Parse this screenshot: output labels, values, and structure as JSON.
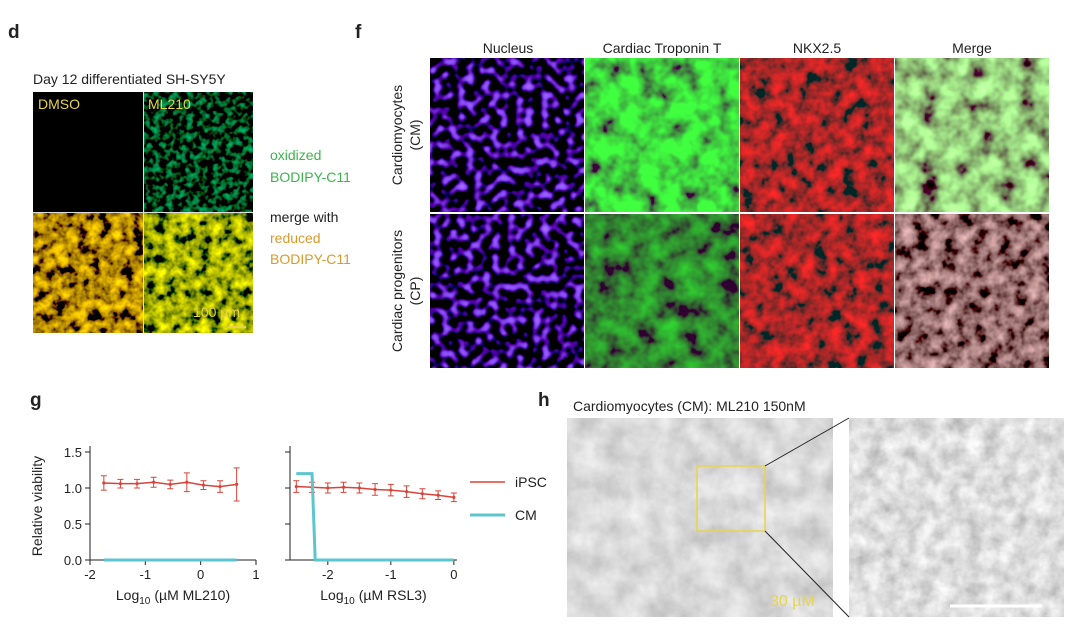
{
  "panels": {
    "d": {
      "label": "d",
      "title": "Day 12 differentiated SH-SY5Y",
      "columns": [
        "DMSO",
        "ML210"
      ],
      "side": [
        "oxidized",
        "BODIPY-C11",
        "merge with",
        "reduced",
        "BODIPY-C11"
      ],
      "scale": "100 µm"
    },
    "f": {
      "label": "f",
      "columns": [
        "Nucleus",
        "Cardiac Troponin T",
        "NKX2.5",
        "Merge"
      ],
      "rows": [
        [
          "Cardiomyocytes",
          "(CM)"
        ],
        [
          "Cardiac progenitors",
          "(CP)"
        ]
      ]
    },
    "g": {
      "label": "g"
    },
    "h": {
      "label": "h",
      "title": "Cardiomyocytes (CM): ML210 150nM",
      "scale": "30 µM"
    }
  },
  "chart_data": [
    {
      "type": "line",
      "ylabel": "Relative viability",
      "xlabel": {
        "text": "Log",
        "sub": "10",
        "rest": "(µM ML210)"
      },
      "xlim": [
        -2,
        1
      ],
      "xticks": [
        -2,
        -1,
        0,
        1
      ],
      "ylim": [
        0,
        1.5
      ],
      "yticks": [
        {
          "value": 0,
          "label": "0.0"
        },
        {
          "value": 0.5,
          "label": "0.5"
        },
        {
          "value": 1,
          "label": "1.0"
        },
        {
          "value": 1.5,
          "label": "1.5"
        }
      ],
      "series": [
        {
          "name": "iPSC",
          "color": "#d9443a",
          "x": [
            -1.75,
            -1.45,
            -1.15,
            -0.85,
            -0.55,
            -0.25,
            0.05,
            0.35,
            0.65
          ],
          "values": [
            1.07,
            1.06,
            1.06,
            1.08,
            1.05,
            1.08,
            1.04,
            1.02,
            1.05
          ],
          "errors": [
            0.1,
            0.06,
            0.06,
            0.07,
            0.06,
            0.13,
            0.06,
            0.08,
            0.23
          ]
        },
        {
          "name": "CM",
          "color": "#5cc6cf",
          "x": [
            -1.75,
            -1.45,
            -1.15,
            -0.85,
            -0.55,
            -0.25,
            0.05,
            0.35,
            0.65
          ],
          "values": [
            0,
            0,
            0,
            0,
            0,
            0,
            0,
            0,
            0
          ]
        }
      ]
    },
    {
      "type": "line",
      "legend": "right",
      "xlabel": {
        "text": "Log",
        "sub": "10",
        "rest": "(µM RSL3)"
      },
      "xlim": [
        -2.6,
        0.05
      ],
      "xticks": [
        -2,
        -1,
        0
      ],
      "ylim": [
        0,
        1.5
      ],
      "yticks": [
        0,
        0.5,
        1,
        1.5
      ],
      "ytick_labels": false,
      "series": [
        {
          "name": "iPSC",
          "color": "#d9443a",
          "x": [
            -2.5,
            -2.25,
            -2,
            -1.75,
            -1.5,
            -1.25,
            -1,
            -0.75,
            -0.5,
            -0.25,
            0
          ],
          "values": [
            1.02,
            1.01,
            1.0,
            1.01,
            1.0,
            0.98,
            0.97,
            0.95,
            0.92,
            0.9,
            0.87
          ],
          "errors": [
            0.08,
            0.07,
            0.07,
            0.07,
            0.07,
            0.08,
            0.08,
            0.08,
            0.07,
            0.06,
            0.06
          ]
        },
        {
          "name": "CM",
          "color": "#5cc6cf",
          "x": [
            -2.5,
            -2.25,
            -2.2,
            -2,
            -1.75,
            -1.5,
            -1.25,
            -1,
            -0.75,
            -0.5,
            -0.25,
            0
          ],
          "values": [
            1.2,
            1.2,
            0,
            0,
            0,
            0,
            0,
            0,
            0,
            0,
            0,
            0
          ]
        }
      ]
    }
  ]
}
